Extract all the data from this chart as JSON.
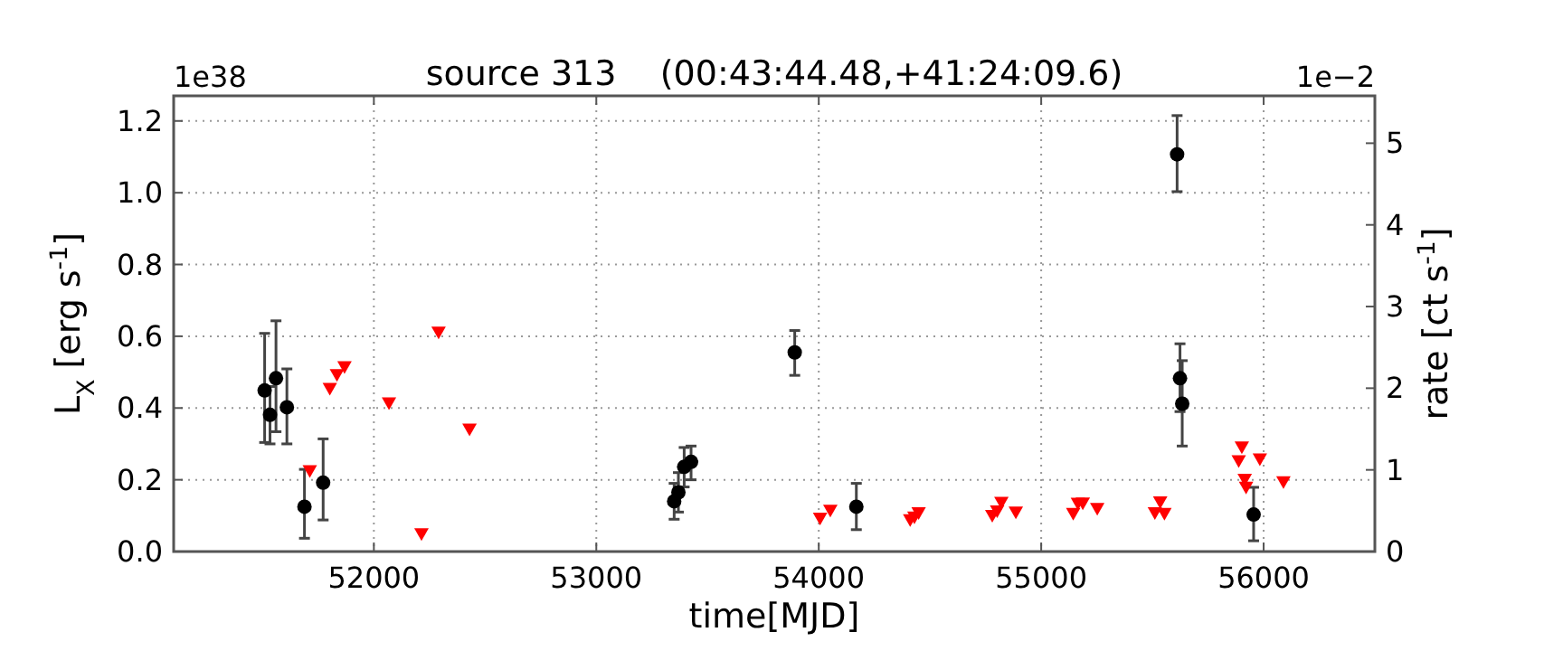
{
  "chart_data": {
    "type": "scatter",
    "title": "source 313    (00:43:44.48,+41:24:09.6)",
    "xlabel": "time[MJD]",
    "ylabel": "L$_{X}$ [erg s$^{-1}$]",
    "y2label": "rate [ct s$^{-1}$]",
    "annotations": [
      "1e38",
      "1e−2"
    ],
    "xlim": [
      51100,
      56500
    ],
    "xticks": [
      52000,
      53000,
      54000,
      55000,
      56000
    ],
    "ylim": [
      0,
      1.27
    ],
    "yticks": [
      {
        "value": 0,
        "label": "0.0"
      },
      {
        "value": 0.2,
        "label": "0.2"
      },
      {
        "value": 0.4,
        "label": "0.4"
      },
      {
        "value": 0.6,
        "label": "0.6"
      },
      {
        "value": 0.8,
        "label": "0.8"
      },
      {
        "value": 1.0,
        "label": "1.0"
      },
      {
        "value": 1.2,
        "label": "1.2"
      }
    ],
    "y2lim": [
      0,
      5.58
    ],
    "y2ticks": [
      0,
      1,
      2,
      3,
      4,
      5
    ],
    "grid": true,
    "series": [
      {
        "color": "#000000",
        "marker": "circle",
        "x": [
          51509,
          51533,
          51560,
          51609,
          51688,
          51772,
          53350,
          53369,
          53395,
          53426,
          53892,
          54169,
          55611,
          55624,
          55634,
          55955
        ],
        "values": [
          0.449,
          0.381,
          0.483,
          0.402,
          0.125,
          0.192,
          0.14,
          0.165,
          0.236,
          0.25,
          0.555,
          0.125,
          1.107,
          0.483,
          0.412,
          0.103
        ],
        "errors": [
          [
            0.304,
            0.608
          ],
          [
            0.3,
            0.46
          ],
          [
            0.334,
            0.643
          ],
          [
            0.3,
            0.509
          ],
          [
            0.037,
            0.229
          ],
          [
            0.088,
            0.314
          ],
          [
            0.09,
            0.19
          ],
          [
            0.11,
            0.22
          ],
          [
            0.18,
            0.29
          ],
          [
            0.2,
            0.294
          ],
          [
            0.491,
            0.616
          ],
          [
            0.061,
            0.19
          ],
          [
            1.003,
            1.215
          ],
          [
            0.39,
            0.579
          ],
          [
            0.294,
            0.532
          ],
          [
            0.03,
            0.179
          ]
        ]
      },
      {
        "color": "#ff0000",
        "marker": "triangle",
        "x": [
          51712,
          51802,
          51834,
          51868,
          52068,
          52291,
          52214,
          52430,
          54006,
          54052,
          54411,
          54430,
          54449,
          54780,
          54802,
          54821,
          54886,
          55144,
          55165,
          55187,
          55252,
          55511,
          55535,
          55554,
          55902,
          55888,
          55915,
          55921,
          55983,
          56089
        ],
        "values": [
          0.223,
          0.452,
          0.491,
          0.513,
          0.412,
          0.609,
          0.047,
          0.339,
          0.091,
          0.113,
          0.086,
          0.094,
          0.106,
          0.098,
          0.111,
          0.135,
          0.108,
          0.104,
          0.132,
          0.133,
          0.118,
          0.106,
          0.136,
          0.104,
          0.289,
          0.251,
          0.199,
          0.177,
          0.256,
          0.192
        ]
      }
    ]
  }
}
